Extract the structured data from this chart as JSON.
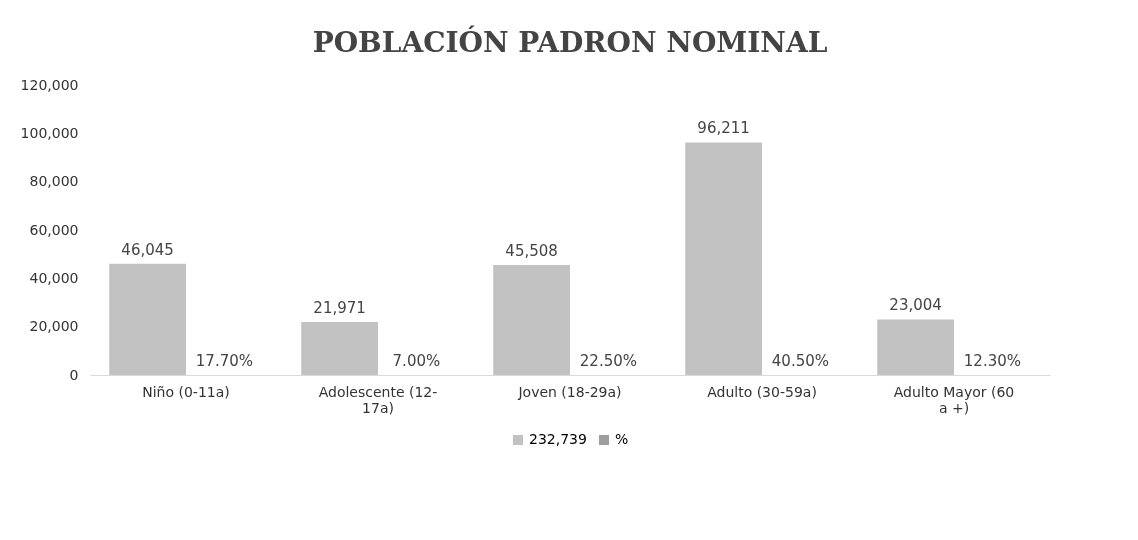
{
  "chart_data": {
    "type": "bar",
    "title": "POBLACIÓN PADRON NOMINAL",
    "categories": [
      "Niño (0-11a)",
      "Adolescente (12-17a)",
      "Joven (18-29a)",
      "Adulto (30-59a)",
      "Adulto Mayor (60 a +)"
    ],
    "series": [
      {
        "name": "232,739",
        "color": "#c2c2c2",
        "values": [
          46045,
          21971,
          45508,
          96211,
          23004
        ],
        "value_labels": [
          "46,045",
          "21,971",
          "45,508",
          "96,211",
          "23,004"
        ]
      },
      {
        "name": "%",
        "color": "#9e9e9e",
        "values": [
          17.7,
          7.0,
          22.5,
          40.5,
          12.3
        ],
        "value_labels": [
          "17.70%",
          "7.00%",
          "22.50%",
          "40.50%",
          "12.30%"
        ]
      }
    ],
    "ylim": [
      0,
      120000
    ],
    "yticks": [
      0,
      {
        "value": 20000,
        "label": "20,000"
      },
      {
        "value": 40000,
        "label": "40,000"
      },
      {
        "value": 60000,
        "label": "60,000"
      },
      {
        "value": 80000,
        "label": "80,000"
      },
      {
        "value": 100000,
        "label": "100,000"
      },
      {
        "value": 120000,
        "label": "120,000"
      }
    ],
    "grid": false,
    "legend": "bottom"
  }
}
